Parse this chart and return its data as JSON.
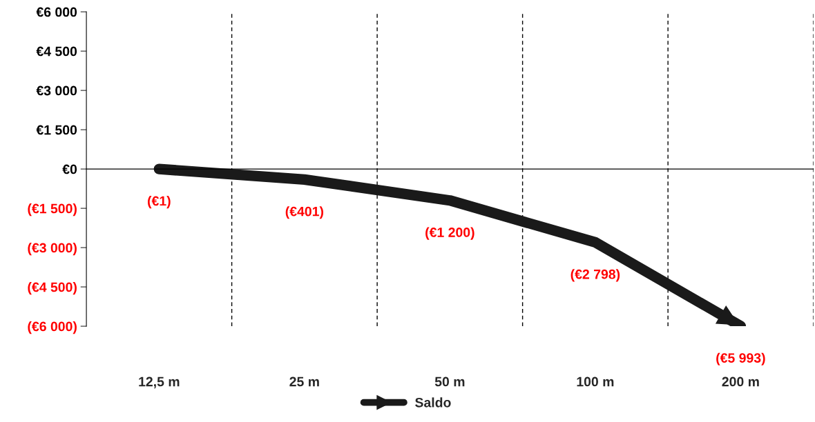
{
  "chart_data": {
    "type": "line",
    "categories": [
      "12,5 m",
      "25 m",
      "50 m",
      "100 m",
      "200 m"
    ],
    "series": [
      {
        "name": "Saldo",
        "color": "#1a1a1a",
        "values": [
          -1,
          -401,
          -1200,
          -2798,
          -5993
        ],
        "value_labels": [
          "(€1)",
          "(€401)",
          "(€1 200)",
          "(€2 798)",
          "(€5 993)"
        ]
      }
    ],
    "ylim": [
      -6000,
      6000
    ],
    "yticks": [
      {
        "value": 6000,
        "label": "€6 000"
      },
      {
        "value": 4500,
        "label": "€4 500"
      },
      {
        "value": 3000,
        "label": "€3 000"
      },
      {
        "value": 1500,
        "label": "€1 500"
      },
      {
        "value": 0,
        "label": "€0"
      },
      {
        "value": -1500,
        "label": "(€1 500)"
      },
      {
        "value": -3000,
        "label": "(€3 000)"
      },
      {
        "value": -4500,
        "label": "(€4 500)"
      },
      {
        "value": -6000,
        "label": "(€6 000)"
      }
    ],
    "grid": "x",
    "legend": "bottom",
    "line_style": "solid"
  }
}
